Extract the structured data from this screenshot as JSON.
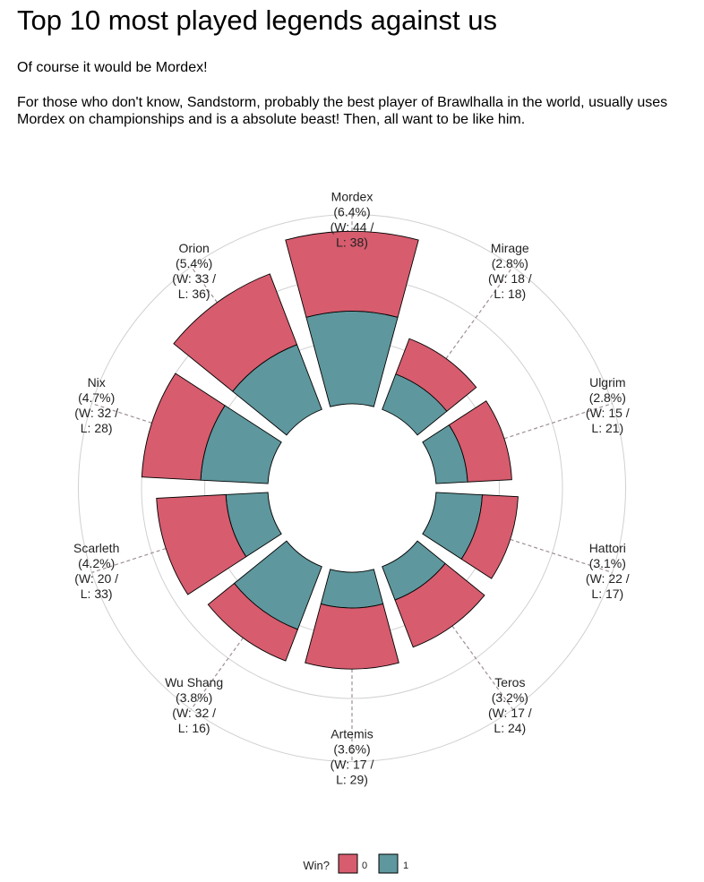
{
  "title": "Top 10 most played legends against us",
  "subtitle": "Of course it would be Mordex!",
  "caption": "For those who don't know, Sandstorm, probably the best player of Brawlhalla in the world, usually uses Mordex on championships and is a absolute beast! Then, all want to be like him.",
  "colors": {
    "loss": "#d65c6e",
    "win": "#5e979d",
    "grid": "#d0d0d0",
    "tick": "#9e8f96"
  },
  "chart_data": {
    "type": "stacked-polar-bar",
    "categories": [
      "Mordex",
      "Mirage",
      "Ulgrim",
      "Hattori",
      "Teros",
      "Artemis",
      "Wu Shang",
      "Scarleth",
      "Nix",
      "Orion"
    ],
    "percent_labels": [
      "(6.4%)",
      "(2.8%)",
      "(2.8%)",
      "(3.1%)",
      "(3.2%)",
      "(3.6%)",
      "(3.8%)",
      "(4.2%)",
      "(4.7%)",
      "(5.4%)"
    ],
    "wl_labels": [
      [
        "(W: 44 /",
        "L: 38)"
      ],
      [
        "(W: 18 /",
        "L: 18)"
      ],
      [
        "(W: 15 /",
        "L: 21)"
      ],
      [
        "(W: 22 /",
        "L: 17)"
      ],
      [
        "(W: 17 /",
        "L: 24)"
      ],
      [
        "(W: 17 /",
        "L: 29)"
      ],
      [
        "(W: 32 /",
        "L: 16)"
      ],
      [
        "(W: 20 /",
        "L: 33)"
      ],
      [
        "(W: 32 /",
        "L: 28)"
      ],
      [
        "(W: 33 /",
        "L: 36)"
      ]
    ],
    "series": [
      {
        "name": "1",
        "values": [
          44,
          18,
          15,
          22,
          17,
          17,
          32,
          20,
          32,
          33
        ]
      },
      {
        "name": "0",
        "values": [
          38,
          18,
          21,
          17,
          24,
          29,
          16,
          33,
          28,
          36
        ]
      }
    ],
    "legend_title": "Win?",
    "legend_position": "bottom"
  }
}
